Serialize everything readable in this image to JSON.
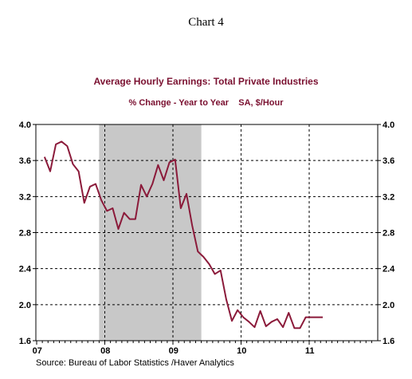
{
  "heading": "Chart 4",
  "chart_data": {
    "type": "line",
    "title": "Average Hourly Earnings: Total Private Industries",
    "subtitle": "% Change - Year to Year    SA, $/Hour",
    "source": "Source:  Bureau of Labor Statistics /Haver Analytics",
    "ylim": [
      1.6,
      4.0
    ],
    "y_ticks": [
      "4.0",
      "3.6",
      "3.2",
      "2.8",
      "2.4",
      "2.0",
      "1.6"
    ],
    "x_ticks": [
      "07",
      "08",
      "09",
      "10",
      "11"
    ],
    "grid": true,
    "recession_shading": {
      "start": "2007-12",
      "end": "2009-06"
    },
    "colors": {
      "series": "#8b1a3a",
      "shading": "#c8c8c8"
    },
    "series": [
      {
        "x": [
          "2006-12",
          "2007-01",
          "2007-02",
          "2007-03",
          "2007-04",
          "2007-05",
          "2007-06",
          "2007-07",
          "2007-08",
          "2007-09",
          "2007-10",
          "2007-11",
          "2007-12",
          "2008-01",
          "2008-02",
          "2008-03",
          "2008-04",
          "2008-05",
          "2008-06",
          "2008-07",
          "2008-08",
          "2008-09",
          "2008-10",
          "2008-11",
          "2008-12",
          "2009-01",
          "2009-02",
          "2009-03",
          "2009-04",
          "2009-05",
          "2009-06",
          "2009-07",
          "2009-08",
          "2009-09",
          "2009-10",
          "2009-11",
          "2009-12",
          "2010-01",
          "2010-02",
          "2010-03",
          "2010-04",
          "2010-05",
          "2010-06",
          "2010-07",
          "2010-08",
          "2010-09",
          "2010-10",
          "2010-11",
          "2010-12",
          "2011-01"
        ],
        "values": [
          3.64,
          3.48,
          3.78,
          3.81,
          3.76,
          3.56,
          3.48,
          3.13,
          3.31,
          3.34,
          3.16,
          3.04,
          3.07,
          2.84,
          3.02,
          2.95,
          2.95,
          3.33,
          3.2,
          3.34,
          3.55,
          3.38,
          3.58,
          3.61,
          3.07,
          3.23,
          2.88,
          2.59,
          2.53,
          2.45,
          2.34,
          2.38,
          2.06,
          1.82,
          1.94,
          1.86,
          1.81,
          1.75,
          1.93,
          1.76,
          1.81,
          1.84,
          1.75,
          1.91,
          1.74,
          1.74,
          1.86,
          1.86,
          1.86,
          1.86
        ]
      }
    ]
  }
}
